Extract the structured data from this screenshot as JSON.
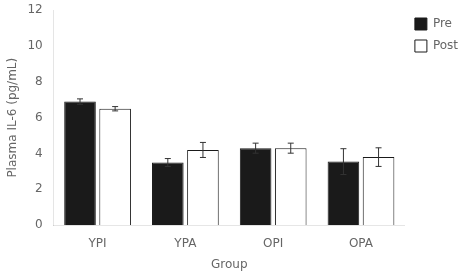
{
  "chart_data": {
    "type": "bar",
    "categories": [
      "YPI",
      "YPA",
      "OPI",
      "OPA"
    ],
    "series": [
      {
        "name": "Pre",
        "color": "#1a1a1a",
        "values": [
          6.9,
          3.5,
          4.3,
          3.55
        ],
        "errors": [
          0.15,
          0.22,
          0.28,
          0.72
        ]
      },
      {
        "name": "Post",
        "color": "#ffffff",
        "values": [
          6.5,
          4.2,
          4.3,
          3.8
        ],
        "errors": [
          0.12,
          0.42,
          0.28,
          0.52
        ]
      }
    ],
    "xlabel": "Group",
    "ylabel": "Plasma IL-6 (pg/mL)",
    "ylim": [
      0,
      12
    ],
    "yticks": [
      0,
      2,
      4,
      6,
      8,
      10,
      12
    ],
    "grid": false,
    "legend": "right"
  }
}
